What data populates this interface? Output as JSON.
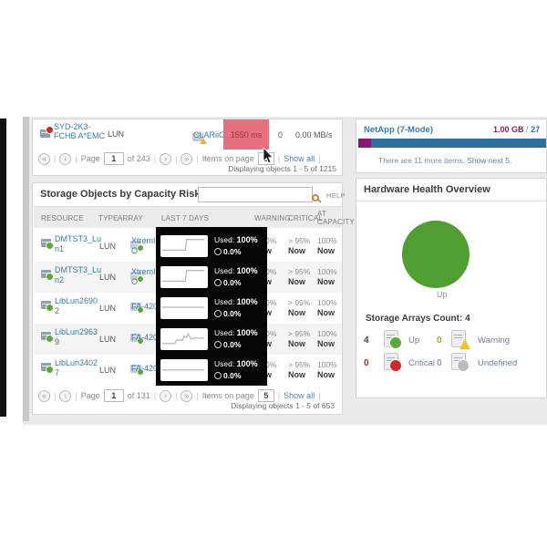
{
  "ui": {
    "sep": "|",
    "first_icon": "«",
    "prev_icon": "‹",
    "next_icon": "›",
    "last_icon": "»"
  },
  "top_panel": {
    "row": {
      "name": "SYD-2K3-FCHB A*EMC",
      "type": "LUN",
      "array": "CLARiiON",
      "latency": "1550 ms",
      "iops": "0",
      "throughput": "0.00 MB/s"
    },
    "pager": {
      "page_label": "Page",
      "page_value": "1",
      "of_label": "of 243",
      "items_label": "Items on page",
      "items_value": "5",
      "show_all": "Show all"
    },
    "displaying": "Displaying objects 1 - 5 of 1215"
  },
  "capacity_panel": {
    "title": "Storage Objects by Capacity Risk",
    "help_label": "HELP",
    "search_placeholder": "",
    "used_label": "Used:",
    "columns": {
      "resource": "RESOURCE",
      "type": "TYPE",
      "array": "ARRAY",
      "last7": "LAST 7 DAYS",
      "warning": "WARNING",
      "critical": "CRITICAL",
      "at_capacity": "AT CAPACITY"
    },
    "rows": [
      {
        "resource": "DMTST3_Lun1",
        "type": "LUN",
        "array": "XtremIO",
        "used": "100%",
        "free": "0.0%",
        "warning": "> 90%",
        "warning_when": "Now",
        "critical": "> 95%",
        "critical_when": "Now",
        "at_capacity": "100%",
        "at_capacity_when": "Now",
        "trend": [
          [
            0,
            0.2
          ],
          [
            0.55,
            0.2
          ],
          [
            0.58,
            0.85
          ],
          [
            1,
            0.85
          ]
        ]
      },
      {
        "resource": "DMTST3_Lun2",
        "type": "LUN",
        "array": "XtremIO",
        "used": "100%",
        "free": "0.0%",
        "warning": "> 90%",
        "warning_when": "Now",
        "critical": "> 95%",
        "critical_when": "Now",
        "at_capacity": "100%",
        "at_capacity_when": "Now",
        "trend": [
          [
            0,
            0.2
          ],
          [
            0.55,
            0.2
          ],
          [
            0.58,
            0.85
          ],
          [
            1,
            0.85
          ]
        ]
      },
      {
        "resource": "LibLun26902",
        "type": "LUN",
        "array": "FA-420",
        "used": "100%",
        "free": "0.0%",
        "warning": "> 90%",
        "warning_when": "Now",
        "critical": "> 95%",
        "critical_when": "Now",
        "at_capacity": "100%",
        "at_capacity_when": "Now",
        "trend": [
          [
            0,
            0.5
          ],
          [
            1,
            0.5
          ]
        ]
      },
      {
        "resource": "LibLun29639",
        "type": "LUN",
        "array": "FA-420",
        "used": "100%",
        "free": "0.0%",
        "warning": "> 90%",
        "warning_when": "Now",
        "critical": "> 95%",
        "critical_when": "Now",
        "at_capacity": "100%",
        "at_capacity_when": "Now",
        "trend": [
          [
            0,
            0.18
          ],
          [
            0.3,
            0.18
          ],
          [
            0.34,
            0.38
          ],
          [
            0.48,
            0.38
          ],
          [
            0.52,
            0.62
          ],
          [
            0.58,
            0.55
          ],
          [
            0.62,
            0.78
          ],
          [
            0.68,
            0.45
          ],
          [
            0.78,
            0.52
          ],
          [
            1,
            0.5
          ]
        ]
      },
      {
        "resource": "LibLun34027",
        "type": "LUN",
        "array": "FA-420",
        "used": "100%",
        "free": "0.0%",
        "warning": "> 90%",
        "warning_when": "Now",
        "critical": "> 95%",
        "critical_when": "Now",
        "at_capacity": "100%",
        "at_capacity_when": "Now",
        "trend": [
          [
            0,
            0.45
          ],
          [
            1,
            0.45
          ]
        ]
      }
    ],
    "pager": {
      "page_label": "Page",
      "page_value": "1",
      "of_label": "of 131",
      "items_label": "Items on page",
      "items_value": "5",
      "show_all": "Show all"
    },
    "displaying": "Displaying objects 1 - 5 of 653"
  },
  "netapp_panel": {
    "title": "NetApp (7-Mode)",
    "usage_value": "1.00 GB",
    "usage_sep": "/",
    "usage_total": "27",
    "note": "There are 11 more items.",
    "show_next": "Show next 5."
  },
  "hardware_panel": {
    "title": "Hardware Health Overview",
    "pie_label": "Up",
    "count_title": "Storage Arrays Count: 4",
    "legend": [
      {
        "count": "4",
        "label": "Up",
        "color": "#5aab35"
      },
      {
        "count": "0",
        "label": "Warning",
        "color": "#f0c22e"
      },
      {
        "count": "0",
        "label": "Critical",
        "color": "#cc2b2b"
      },
      {
        "count": "0",
        "label": "Undefined",
        "color": "#bdbdbd"
      }
    ]
  },
  "colors": {
    "latency_alert_bg": "#e8707c",
    "bar_purple": "#8a1777",
    "bar_blue": "#2d6f9f",
    "pie_green": "#4f9e31",
    "link_blue": "#3a7ca8"
  }
}
